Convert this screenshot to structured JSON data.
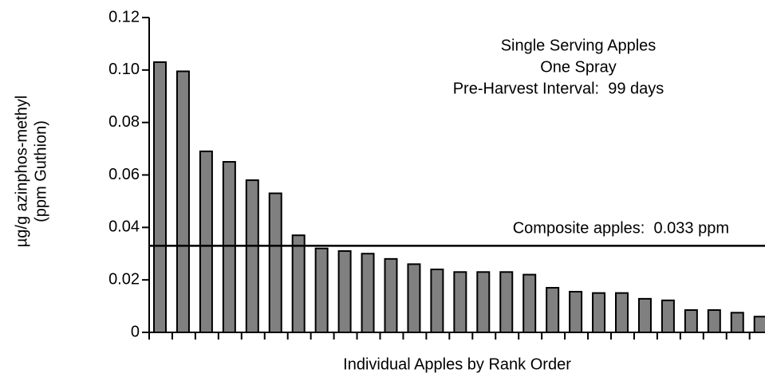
{
  "chart_data": {
    "type": "bar",
    "annotations": [
      "Single Serving Apples",
      "One Spray",
      "Pre-Harvest Interval:  99 days"
    ],
    "y_label": [
      "µg/g azinphos-methyl",
      "(ppm Guthion)"
    ],
    "x_label": "Individual Apples by Rank Order",
    "categories": [
      null,
      null,
      null,
      null,
      null,
      null,
      null,
      null,
      null,
      null,
      null,
      null,
      null,
      null,
      null,
      null,
      null,
      null,
      null,
      null,
      null,
      null,
      null,
      null,
      null,
      null,
      null
    ],
    "values": [
      0.103,
      0.0995,
      0.069,
      0.065,
      0.058,
      0.053,
      0.037,
      0.032,
      0.031,
      0.03,
      0.028,
      0.026,
      0.024,
      0.023,
      0.023,
      0.023,
      0.022,
      0.017,
      0.0155,
      0.015,
      0.015,
      0.0128,
      0.0122,
      0.0085,
      0.0085,
      0.0075,
      0.006
    ],
    "color": "#808080",
    "ylim": [
      0,
      0.12
    ],
    "yticks": [
      0,
      0.02,
      0.04,
      0.06,
      0.08,
      {
        "value": 0.1,
        "label": "0.10"
      },
      0.12
    ],
    "reference_line": {
      "value": 0.033,
      "label": "Composite apples:  0.033 ppm"
    }
  }
}
